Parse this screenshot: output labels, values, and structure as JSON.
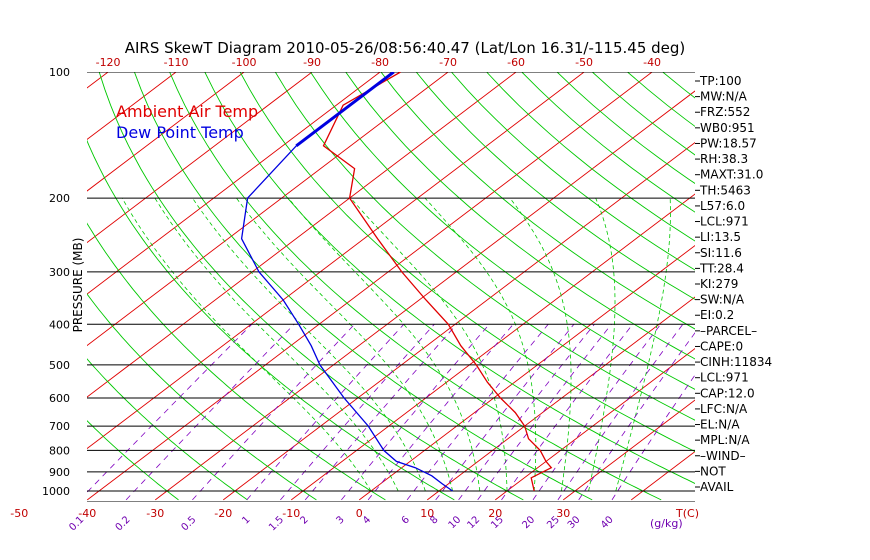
{
  "chart_data": {
    "type": "line",
    "title": "AIRS SkewT Diagram 2010-05-26/08:56:40.47 (Lat/Lon 16.31/-115.45 deg)",
    "ylabel": "PRESSURE (MB)",
    "y_scale": "log",
    "ylim": [
      1050,
      100
    ],
    "pressure_ticks": [
      100,
      200,
      300,
      400,
      500,
      600,
      700,
      800,
      900,
      1000
    ],
    "top_temp_ticks": [
      -120,
      -110,
      -100,
      -90,
      -80,
      -70,
      -60,
      -50,
      -40
    ],
    "bottom_temp_ticks": [
      -50,
      -40,
      -30,
      -20,
      -10,
      0,
      10,
      20,
      30
    ],
    "bottom_temp_unit": "T(C)",
    "mixing_ratio_ticks": [
      "0.1",
      "0.2",
      "0.5",
      "1",
      "1.5",
      "2",
      "3",
      "4",
      "6",
      "8",
      "10",
      "12",
      "15",
      "20",
      "25",
      "30",
      "40"
    ],
    "mixing_ratio_unit": "(g/kg)",
    "legend": [
      {
        "label": "Ambient Air Temp",
        "color": "#e00000"
      },
      {
        "label": "Dew Point Temp",
        "color": "#0000e0"
      }
    ],
    "series": [
      {
        "name": "Ambient Air Temp",
        "color": "#e00000",
        "points": [
          [
            100,
            -77
          ],
          [
            120,
            -79
          ],
          [
            150,
            -74
          ],
          [
            170,
            -65
          ],
          [
            200,
            -60
          ],
          [
            250,
            -48
          ],
          [
            300,
            -38
          ],
          [
            350,
            -29
          ],
          [
            400,
            -21
          ],
          [
            450,
            -15
          ],
          [
            500,
            -9
          ],
          [
            550,
            -4
          ],
          [
            600,
            1
          ],
          [
            650,
            6
          ],
          [
            700,
            10
          ],
          [
            750,
            13
          ],
          [
            800,
            17
          ],
          [
            850,
            20
          ],
          [
            880,
            22
          ],
          [
            930,
            21
          ],
          [
            1000,
            24
          ]
        ]
      },
      {
        "name": "Dew Point Temp",
        "color": "#0000e0",
        "points": [
          [
            100,
            -78
          ],
          [
            150,
            -78
          ],
          [
            200,
            -75
          ],
          [
            250,
            -68
          ],
          [
            300,
            -59
          ],
          [
            350,
            -50
          ],
          [
            400,
            -43
          ],
          [
            450,
            -37
          ],
          [
            500,
            -32
          ],
          [
            600,
            -22
          ],
          [
            700,
            -13
          ],
          [
            800,
            -6
          ],
          [
            850,
            -2
          ],
          [
            880,
            2
          ],
          [
            920,
            6
          ],
          [
            960,
            9
          ],
          [
            1000,
            12
          ]
        ]
      }
    ],
    "indices": [
      "TP:100",
      "MW:N/A",
      "FRZ:552",
      "WB0:951",
      "PW:18.57",
      "RH:38.3",
      "MAXT:31.0",
      "TH:5463",
      "L57:6.0",
      "LCL:971",
      "LI:13.5",
      "SI:11.6",
      "TT:28.4",
      "KI:279",
      "SW:N/A",
      "EI:0.2",
      "–PARCEL–",
      "CAPE:0",
      "CINH:11834",
      "LCL:971",
      "CAP:12.0",
      "LFC:N/A",
      "EL:N/A",
      "MPL:N/A",
      "–WIND–",
      "NOT",
      "AVAIL"
    ],
    "colors": {
      "isotherm": "#e00000",
      "dry_adiabat": "#00c800",
      "moist_adiabat": "#00c800",
      "mixing_ratio": "#8000c0",
      "isobar": "#000000"
    }
  }
}
